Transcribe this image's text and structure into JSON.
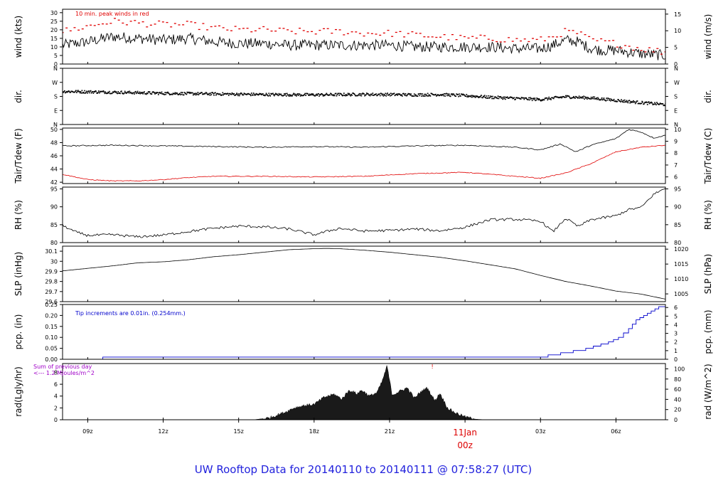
{
  "figure_title": "UW Rooftop Data for 20140110  to  20140111 @ 07:58:27  (UTC)",
  "colors": {
    "axis": "#000000",
    "series_black": "#000000",
    "series_red": "#e00000",
    "series_blue": "#0000cc",
    "annotation_purple": "#a000c8",
    "title_blue": "#2222dd",
    "day_label_red": "#dd0000"
  },
  "time_axis": {
    "start_hour": 8.0,
    "end_hour": 31.967,
    "tick_hours": [
      9,
      12,
      15,
      18,
      21,
      24,
      27,
      30
    ],
    "tick_labels": [
      "09z",
      "12z",
      "15z",
      "18z",
      "21z",
      "",
      "03z",
      "06z"
    ],
    "day_label": "11Jan",
    "day_sublabel": "00z",
    "day_hour": 24
  },
  "chart_data": [
    {
      "type": "line",
      "id": "wind",
      "ylabel_left": "wind (kts)",
      "ylabel_right": "wind (m/s)",
      "ylim": [
        0,
        32
      ],
      "yticks": [
        0,
        5,
        10,
        15,
        20,
        25,
        30
      ],
      "ylim_right": [
        0,
        16.46
      ],
      "yticks_right": [
        0,
        5,
        10,
        15
      ],
      "annotation": "10 min. peak winds in red",
      "series": [
        {
          "name": "wind speed",
          "color": "#000000",
          "style": "line",
          "x": [
            8.0,
            9.0,
            10.0,
            11.0,
            12.0,
            13.0,
            14.0,
            15.0,
            16.0,
            17.0,
            18.0,
            19.0,
            20.0,
            21.0,
            22.0,
            23.0,
            24.0,
            25.0,
            26.0,
            27.0,
            27.5,
            28.0,
            28.5,
            29.0,
            29.5,
            30.0,
            31.0,
            31.97
          ],
          "values": [
            11,
            13,
            16,
            15,
            14,
            15,
            13,
            12,
            12,
            11,
            11,
            11,
            11,
            11,
            10,
            10,
            10,
            10,
            9,
            9,
            11,
            14,
            13,
            9,
            8,
            8,
            6,
            5
          ],
          "noise": 3.2
        },
        {
          "name": "10 min. peak winds",
          "color": "#e00000",
          "style": "dashes",
          "x": [
            8.0,
            9.0,
            10.0,
            11.0,
            12.0,
            13.0,
            14.0,
            15.0,
            16.0,
            17.0,
            18.0,
            19.0,
            20.0,
            21.0,
            22.0,
            23.0,
            24.0,
            25.0,
            26.0,
            27.0,
            27.5,
            28.0,
            28.5,
            29.0,
            29.5,
            30.0,
            31.0,
            31.97
          ],
          "values": [
            19,
            22,
            25,
            24,
            23,
            23,
            21,
            20,
            20,
            19,
            19,
            19,
            18,
            18,
            17,
            16,
            15,
            15,
            14,
            14,
            16,
            19,
            18,
            14,
            13,
            12,
            9,
            7
          ],
          "noise": 2.0
        }
      ]
    },
    {
      "type": "scatter",
      "id": "dir",
      "ylabel_left": "dir.",
      "ylabel_right": "dir.",
      "ylim": [
        0,
        360
      ],
      "yticks": [
        0,
        90,
        180,
        270,
        360
      ],
      "ytick_labels": [
        "N",
        "E",
        "S",
        "W",
        "N"
      ],
      "series": [
        {
          "name": "wind direction",
          "color": "#000000",
          "style": "dots",
          "x": [
            8.0,
            10.0,
            12.0,
            14.0,
            16.0,
            18.0,
            20.0,
            21.0,
            22.0,
            23.0,
            24.0,
            25.0,
            26.0,
            27.0,
            28.0,
            29.0,
            30.0,
            31.0,
            31.97
          ],
          "values": [
            212,
            207,
            200,
            196,
            192,
            190,
            193,
            192,
            190,
            192,
            185,
            175,
            168,
            160,
            178,
            170,
            155,
            140,
            128
          ],
          "noise": 9
        }
      ]
    },
    {
      "type": "line",
      "id": "temp",
      "ylabel_left": "Tair/Tdew (F)",
      "ylabel_right": "Tair/Tdew (C)",
      "ylim": [
        41.8,
        50.2
      ],
      "yticks": [
        42,
        44,
        46,
        48,
        50
      ],
      "ylim_right": [
        5.44,
        10.11
      ],
      "yticks_right": [
        6,
        7,
        8,
        9,
        10
      ],
      "series": [
        {
          "name": "Tair",
          "color": "#000000",
          "style": "line",
          "x": [
            8.0,
            10.0,
            12.0,
            14.0,
            16.0,
            18.0,
            20.0,
            22.0,
            24.0,
            26.0,
            27.0,
            27.8,
            28.4,
            28.6,
            29.0,
            30.0,
            30.5,
            31.0,
            31.5,
            31.97
          ],
          "values": [
            47.5,
            47.6,
            47.5,
            47.4,
            47.3,
            47.4,
            47.3,
            47.5,
            47.6,
            47.3,
            46.9,
            47.8,
            46.6,
            46.9,
            47.6,
            48.6,
            50.0,
            49.6,
            48.7,
            49.1
          ],
          "noise": 0.08
        },
        {
          "name": "Tdew",
          "color": "#e00000",
          "style": "line",
          "x": [
            8.0,
            9.0,
            10.0,
            11.0,
            12.0,
            13.0,
            14.0,
            16.0,
            18.0,
            20.0,
            22.0,
            24.0,
            25.0,
            26.0,
            27.0,
            28.0,
            29.0,
            30.0,
            31.0,
            31.97
          ],
          "values": [
            43.2,
            42.4,
            42.2,
            42.2,
            42.4,
            42.7,
            42.9,
            42.9,
            42.8,
            42.9,
            43.3,
            43.5,
            43.2,
            42.9,
            42.6,
            43.4,
            44.8,
            46.6,
            47.3,
            47.6
          ],
          "noise": 0.06
        }
      ]
    },
    {
      "type": "line",
      "id": "rh",
      "ylabel_left": "RH (%)",
      "ylabel_right": "RH (%)",
      "ylim": [
        80,
        95.5
      ],
      "yticks": [
        80,
        85,
        90,
        95
      ],
      "yticks_right": [
        80,
        85,
        90,
        95
      ],
      "series": [
        {
          "name": "relative humidity",
          "color": "#000000",
          "style": "line",
          "x": [
            8.0,
            8.5,
            9.0,
            10.0,
            11.0,
            12.0,
            13.0,
            14.0,
            15.0,
            16.0,
            17.0,
            18.0,
            19.0,
            20.0,
            21.0,
            22.0,
            23.0,
            24.0,
            25.0,
            26.0,
            27.0,
            27.5,
            28.0,
            28.5,
            29.0,
            30.0,
            30.5,
            31.0,
            31.5,
            31.97
          ],
          "values": [
            84.8,
            83.0,
            82.0,
            82.2,
            81.6,
            82.1,
            83.1,
            84.0,
            84.6,
            84.4,
            83.8,
            82.2,
            84.0,
            83.2,
            83.4,
            83.8,
            83.3,
            84.3,
            86.4,
            86.5,
            86.0,
            83.0,
            86.8,
            84.5,
            86.4,
            87.5,
            89.2,
            89.8,
            93.5,
            95.2
          ],
          "noise": 0.35
        }
      ]
    },
    {
      "type": "line",
      "id": "slp",
      "ylabel_left": "SLP (inHg)",
      "ylabel_right": "SLP (hPa)",
      "ylim": [
        29.6,
        30.15
      ],
      "yticks": [
        29.6,
        29.7,
        29.8,
        29.9,
        30.0,
        30.1
      ],
      "ylim_right": [
        1002.4,
        1021.0
      ],
      "yticks_right": [
        1005,
        1010,
        1015,
        1020
      ],
      "series": [
        {
          "name": "sea level pressure",
          "color": "#000000",
          "style": "line",
          "x": [
            8.0,
            9.0,
            10.0,
            11.0,
            12.0,
            13.0,
            14.0,
            15.0,
            16.0,
            17.0,
            18.0,
            18.5,
            19.0,
            20.0,
            21.0,
            22.0,
            23.0,
            24.0,
            25.0,
            26.0,
            27.0,
            28.0,
            29.0,
            30.0,
            31.0,
            31.97
          ],
          "values": [
            29.905,
            29.93,
            29.955,
            29.985,
            29.995,
            30.015,
            30.045,
            30.065,
            30.09,
            30.115,
            30.125,
            30.128,
            30.125,
            30.11,
            30.09,
            30.065,
            30.04,
            30.005,
            29.965,
            29.925,
            29.86,
            29.8,
            29.755,
            29.705,
            29.675,
            29.625
          ],
          "noise": 0
        }
      ]
    },
    {
      "type": "line",
      "id": "pcp",
      "ylabel_left": "pcp. (in)",
      "ylabel_right": "pcp. (mm)",
      "ylim": [
        0,
        0.25
      ],
      "yticks": [
        0.0,
        0.05,
        0.1,
        0.15,
        0.2,
        0.25
      ],
      "ytick_labels": [
        "0.00",
        "0.05",
        "0.10",
        "0.15",
        "0.20",
        "0.25"
      ],
      "ylim_right": [
        0,
        6.35
      ],
      "yticks_right": [
        0,
        1,
        2,
        3,
        4,
        5,
        6
      ],
      "annotation": "Tip increments are 0.01in. (0.254mm.)",
      "series": [
        {
          "name": "precipitation",
          "color": "#0000cc",
          "style": "step",
          "x": [
            8.0,
            9.6,
            27.3,
            27.8,
            28.3,
            28.8,
            29.1,
            29.4,
            29.7,
            29.9,
            30.1,
            30.3,
            30.5,
            30.65,
            30.8,
            30.95,
            31.1,
            31.25,
            31.4,
            31.55,
            31.7,
            31.97
          ],
          "values": [
            0.0,
            0.01,
            0.02,
            0.03,
            0.04,
            0.05,
            0.06,
            0.07,
            0.08,
            0.09,
            0.1,
            0.12,
            0.14,
            0.16,
            0.18,
            0.19,
            0.2,
            0.21,
            0.22,
            0.23,
            0.24,
            0.25
          ]
        }
      ]
    },
    {
      "type": "area",
      "id": "rad",
      "ylabel_left": "rad(Lgly/hr)",
      "ylabel_right": "rad (W/m^2)",
      "ylim": [
        0,
        9.5
      ],
      "yticks": [
        0,
        2,
        4,
        6,
        8
      ],
      "ylim_right": [
        0,
        110.4
      ],
      "yticks_right": [
        0,
        20,
        40,
        60,
        80,
        100
      ],
      "annotation_line1": "Sum of previous day",
      "annotation_line2": "<--- 1.2 MJoules/m^2",
      "marker": "!",
      "marker_hour": 22.7,
      "series": [
        {
          "name": "solar radiation",
          "color": "#000000",
          "style": "area",
          "x": [
            15.6,
            16.2,
            16.8,
            17.2,
            17.6,
            18.0,
            18.4,
            18.8,
            19.1,
            19.4,
            19.7,
            19.9,
            20.2,
            20.5,
            20.7,
            20.9,
            21.1,
            21.4,
            21.7,
            22.0,
            22.2,
            22.5,
            22.8,
            23.0,
            23.3,
            23.6,
            24.0,
            24.4,
            24.8
          ],
          "values": [
            0.0,
            0.3,
            1.2,
            2.0,
            2.4,
            2.6,
            3.8,
            4.3,
            3.5,
            5.0,
            4.4,
            5.0,
            4.0,
            4.6,
            6.4,
            9.1,
            4.2,
            4.8,
            5.4,
            3.6,
            4.6,
            5.4,
            3.2,
            4.5,
            2.0,
            1.2,
            0.5,
            0.1,
            0.0
          ],
          "noise": 0.25
        }
      ]
    }
  ]
}
